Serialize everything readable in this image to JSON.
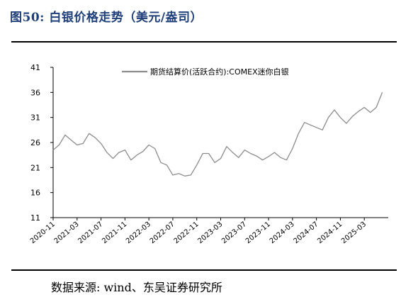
{
  "figure_title": "图50:  白银价格走势（美元/盎司）",
  "source_text": "数据来源: wind、东吴证券研究所",
  "chart_data": {
    "type": "line",
    "title": "",
    "xlabel": "",
    "ylabel": "",
    "ylim": [
      11,
      41
    ],
    "yticks": [
      "11",
      "16",
      "21",
      "26",
      "31",
      "36",
      "41"
    ],
    "xlim": [
      "2020-11",
      "2025-07"
    ],
    "xticks": [
      "2020-11",
      "2021-03",
      "2021-07",
      "2021-11",
      "2022-03",
      "2022-07",
      "2022-11",
      "2023-03",
      "2023-07",
      "2023-11",
      "2024-03",
      "2024-07",
      "2024-11",
      "2025-03"
    ],
    "legend_position": "top-center",
    "grid": false,
    "colors": {
      "series": "#8c8c8c",
      "axis": "#000000",
      "title": "#1f3f7a"
    },
    "series": [
      {
        "name": "期货结算价(活跃合约):COMEX迷你白银",
        "x": [
          "2020-11",
          "2020-12",
          "2021-01",
          "2021-02",
          "2021-03",
          "2021-04",
          "2021-05",
          "2021-06",
          "2021-07",
          "2021-08",
          "2021-09",
          "2021-10",
          "2021-11",
          "2021-12",
          "2022-01",
          "2022-02",
          "2022-03",
          "2022-04",
          "2022-05",
          "2022-06",
          "2022-07",
          "2022-08",
          "2022-09",
          "2022-10",
          "2022-11",
          "2022-12",
          "2023-01",
          "2023-02",
          "2023-03",
          "2023-04",
          "2023-05",
          "2023-06",
          "2023-07",
          "2023-08",
          "2023-09",
          "2023-10",
          "2023-11",
          "2023-12",
          "2024-01",
          "2024-02",
          "2024-03",
          "2024-04",
          "2024-05",
          "2024-06",
          "2024-07",
          "2024-08",
          "2024-09",
          "2024-10",
          "2024-11",
          "2024-12",
          "2025-01",
          "2025-02",
          "2025-03",
          "2025-04",
          "2025-05",
          "2025-06"
        ],
        "values": [
          24.5,
          25.5,
          27.5,
          26.5,
          25.5,
          25.8,
          27.8,
          27.0,
          25.8,
          24.0,
          22.8,
          24.0,
          24.5,
          22.5,
          23.5,
          24.2,
          25.5,
          24.8,
          22.0,
          21.5,
          19.5,
          19.8,
          19.3,
          19.5,
          21.5,
          23.8,
          23.8,
          22.0,
          22.8,
          25.2,
          24.0,
          23.0,
          24.5,
          23.8,
          23.3,
          22.5,
          23.2,
          24.0,
          23.0,
          22.5,
          24.8,
          27.8,
          30.0,
          29.5,
          29.0,
          28.5,
          31.0,
          32.5,
          31.0,
          29.8,
          31.2,
          32.2,
          33.0,
          32.0,
          33.0,
          36.0
        ]
      }
    ]
  }
}
